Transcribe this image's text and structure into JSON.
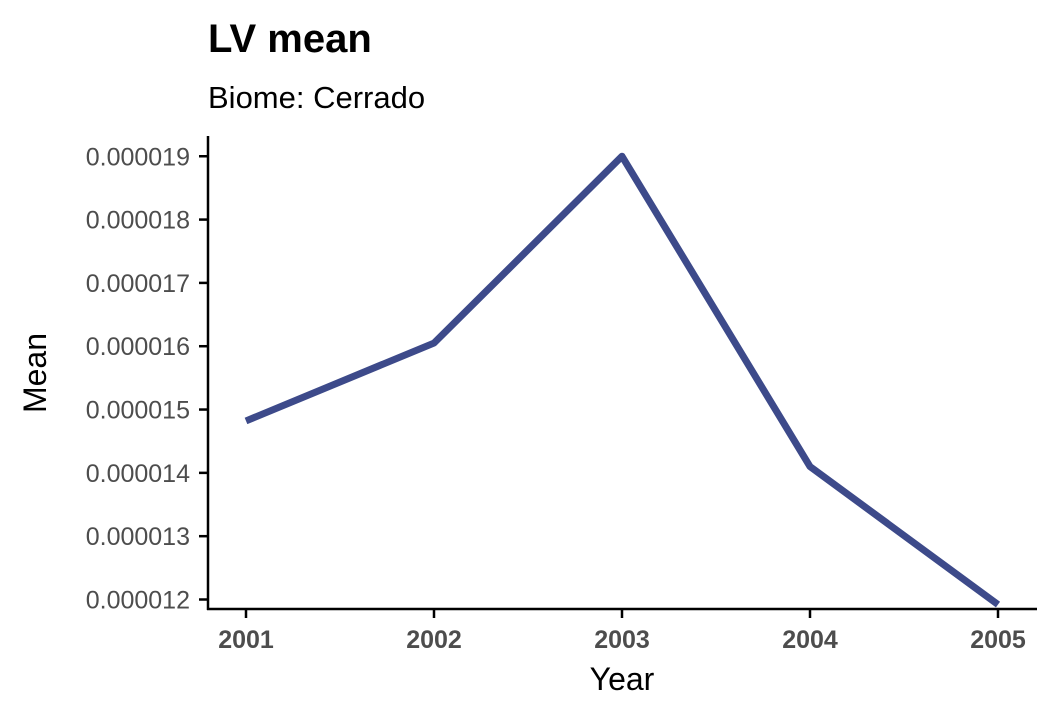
{
  "chart_data": {
    "type": "line",
    "title": "LV mean",
    "subtitle": "Biome: Cerrado",
    "xlabel": "Year",
    "ylabel": "Mean",
    "x": [
      2001,
      2002,
      2003,
      2004,
      2005
    ],
    "x_tick_labels": [
      "2001",
      "2002",
      "2003",
      "2004",
      "2005"
    ],
    "series": [
      {
        "values": [
          1.482e-05,
          1.605e-05,
          1.9e-05,
          1.41e-05,
          1.192e-05
        ],
        "color": "#3d4a8a"
      }
    ],
    "y_ticks": [
      1.2e-05,
      1.3e-05,
      1.4e-05,
      1.5e-05,
      1.6e-05,
      1.7e-05,
      1.8e-05,
      1.9e-05
    ],
    "y_tick_labels": [
      "0.000012",
      "0.000013",
      "0.000014",
      "0.000015",
      "0.000016",
      "0.000017",
      "0.000018",
      "0.000019"
    ],
    "ylim": [
      1.185e-05,
      1.932e-05
    ],
    "xlim": [
      2001,
      2005
    ],
    "grid": false,
    "legend": "none"
  }
}
